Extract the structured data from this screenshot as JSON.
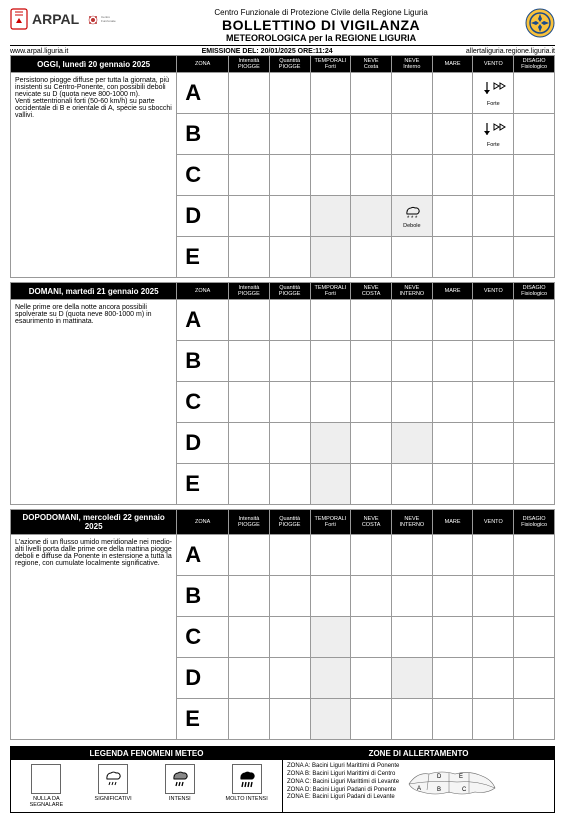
{
  "header": {
    "arpal": "ARPAL",
    "line1": "Centro Funzionale di Protezione Civile della Regione Liguria",
    "line2": "BOLLETTINO DI VIGILANZA",
    "line3": "METEOROLOGICA per la REGIONE LIGURIA"
  },
  "subbar": {
    "left": "www.arpal.liguria.it",
    "center": "EMISSIONE DEL: 20/01/2025 ORE:11:24",
    "right": "allertaliguria.regione.liguria.it"
  },
  "columns": [
    "ZONA",
    "Intensità\nPIOGGE",
    "Quantità\nPIOGGE",
    "TEMPORALI\nForti",
    "NEVE\nCosta",
    "NEVE\nInterno",
    "MARE",
    "VENTO",
    "DISAGIO\nFisiologico"
  ],
  "columns2": [
    "ZONA",
    "Intensità\nPIOGGE",
    "Quantità\nPIOGGE",
    "TEMPORALI\nForti",
    "NEVE\nCOSTA",
    "NEVE\nINTERNO",
    "MARE",
    "VENTO",
    "DISAGIO\nFisiologico"
  ],
  "zones": [
    "A",
    "B",
    "C",
    "D",
    "E"
  ],
  "days": [
    {
      "date": "OGGI, lunedì 20 gennaio 2025",
      "desc": "Persistono piogge diffuse per tutta la giornata, più insistenti su Centro-Ponente, con possibili deboli nevicate su D (quota neve 800-1000 m).\nVenti settentrionali forti (50-60 km/h) su parte occidentale di B e orientale di A, specie su sbocchi vallivi.",
      "shaded": {
        "D": [
          3,
          4,
          5
        ],
        "E": [
          3
        ]
      },
      "icons": {
        "A": {
          "7": {
            "type": "wind",
            "label": "Forte"
          }
        },
        "B": {
          "7": {
            "type": "wind",
            "label": "Forte"
          }
        },
        "D": {
          "5": {
            "type": "snow",
            "label": "Debole"
          }
        }
      }
    },
    {
      "date": "DOMANI, martedì 21 gennaio 2025",
      "desc": "Nelle prime ore della notte ancora possibili spolverate su D (quota neve 800-1000 m) in esaurimento in mattinata.",
      "shaded": {
        "D": [
          3,
          5
        ],
        "E": [
          3
        ]
      },
      "icons": {}
    },
    {
      "date": "DOPODOMANI, mercoledì 22 gennaio 2025",
      "desc": "L'azione di un flusso umido meridionale nei medio-alti livelli porta dalle prime ore della mattina piogge deboli e diffuse da Ponente in estensione a tutta la regione, con cumulate localmente significative.",
      "shaded": {
        "C": [
          3
        ],
        "D": [
          3,
          5
        ],
        "E": [
          3
        ]
      },
      "icons": {}
    }
  ],
  "legend": {
    "title_left": "LEGENDA FENOMENI METEO",
    "title_right": "ZONE DI ALLERTAMENTO",
    "items": [
      {
        "label": "NULLA DA\nSEGNALARE",
        "icon": "none"
      },
      {
        "label": "SIGNIFICATIVI",
        "icon": "sig"
      },
      {
        "label": "INTENSI",
        "icon": "int"
      },
      {
        "label": "MOLTO INTENSI",
        "icon": "molto"
      }
    ],
    "zones_desc": [
      "ZONA A: Bacini Liguri Marittimi di Ponente",
      "ZONA B: Bacini Liguri Marittimi di Centro",
      "ZONA C: Bacini Liguri Marittimi di Levante",
      "ZONA D: Bacini Liguri Padani di Ponente",
      "ZONA E: Bacini Liguri Padani di Levante"
    ]
  }
}
